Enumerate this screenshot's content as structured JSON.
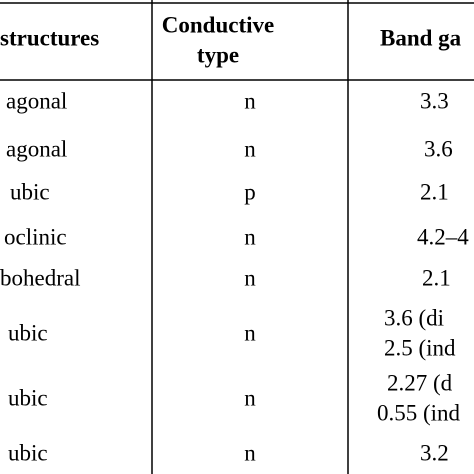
{
  "table": {
    "header": [
      [
        "structures"
      ],
      [
        "Conductive",
        "type"
      ],
      [
        "Band ga"
      ]
    ],
    "rows": [
      [
        [
          "agonal"
        ],
        [
          "n"
        ],
        [
          "3.3"
        ]
      ],
      [
        [
          "agonal"
        ],
        [
          "n"
        ],
        [
          "3.6"
        ]
      ],
      [
        [
          "ubic"
        ],
        [
          "p"
        ],
        [
          "2.1"
        ]
      ],
      [
        [
          "oclinic"
        ],
        [
          "n"
        ],
        [
          "4.2–4"
        ]
      ],
      [
        [
          "bohedral"
        ],
        [
          "n"
        ],
        [
          "2.1"
        ]
      ],
      [
        [
          "ubic"
        ],
        [
          "n"
        ],
        [
          "3.6 (di",
          "2.5 (ind"
        ]
      ],
      [
        [
          "ubic"
        ],
        [
          "n"
        ],
        [
          "2.27 (d",
          "0.55 (ind"
        ]
      ],
      [
        [
          "ubic"
        ],
        [
          "n"
        ],
        [
          "3.2"
        ]
      ]
    ]
  }
}
